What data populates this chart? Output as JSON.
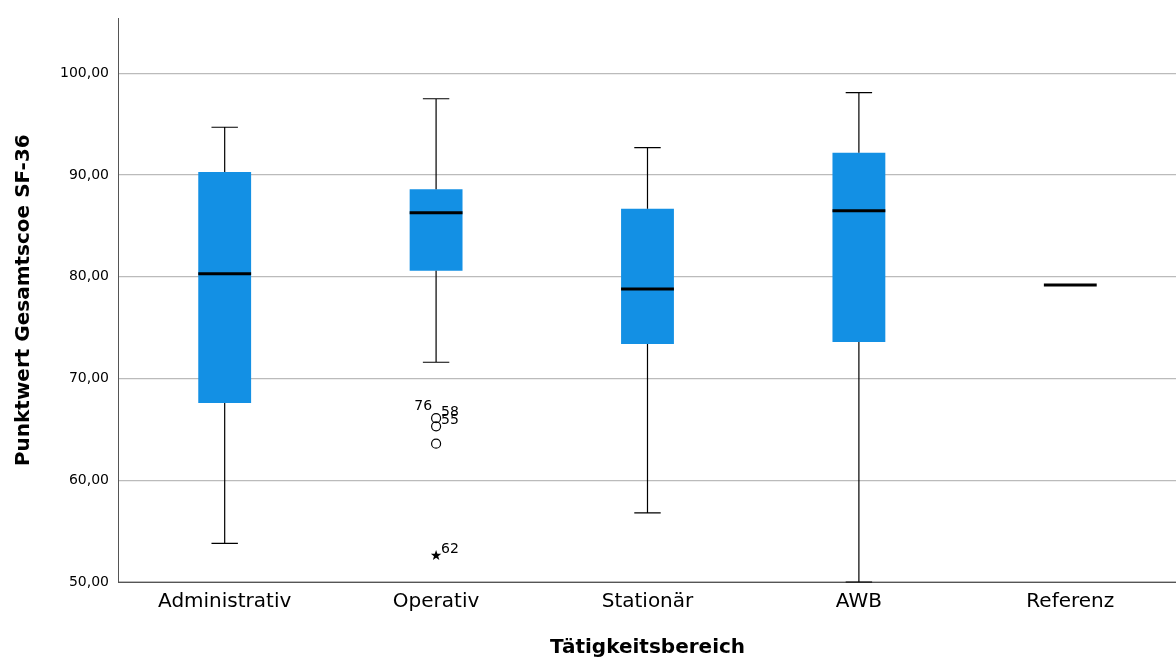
{
  "chart_data": {
    "type": "box",
    "xlabel": "Tätigkeitsbereich",
    "ylabel": "Punktwert Gesamtscoe SF-36",
    "categories": [
      "Administrativ",
      "Operativ",
      "Stationär",
      "AWB",
      "Referenz"
    ],
    "colors": [
      "#1390e4",
      "#1390e4",
      "#1390e4",
      "#1390e4",
      "#000000"
    ],
    "boxes": [
      {
        "low": 53.8,
        "q1": 67.6,
        "median": 80.3,
        "q3": 90.3,
        "high": 94.7
      },
      {
        "low": 71.6,
        "q1": 80.6,
        "median": 86.3,
        "q3": 88.6,
        "high": 97.5,
        "outliers": [
          66.1,
          65.3,
          63.6,
          52.6
        ]
      },
      {
        "low": 56.8,
        "q1": 73.4,
        "median": 78.8,
        "q3": 86.7,
        "high": 92.7
      },
      {
        "low": 50,
        "q1": 73.6,
        "median": 86.5,
        "q3": 92.2,
        "high": 98.1
      },
      {
        "low": 79.2,
        "q1": 79.2,
        "median": 79.2,
        "q3": 79.2,
        "high": 79.2
      }
    ],
    "annotations": [
      "76",
      "58",
      "55",
      "62"
    ],
    "ylim": [
      50,
      105.4
    ],
    "yticks": [
      {
        "value": 50,
        "label": "50,00"
      },
      {
        "value": 60,
        "label": "60,00"
      },
      {
        "value": 70,
        "label": "70,00"
      },
      {
        "value": 80,
        "label": "80,00"
      },
      {
        "value": 90,
        "label": "90,00"
      },
      {
        "value": 100,
        "label": "100,00"
      }
    ],
    "grid": "y",
    "legend": false
  }
}
